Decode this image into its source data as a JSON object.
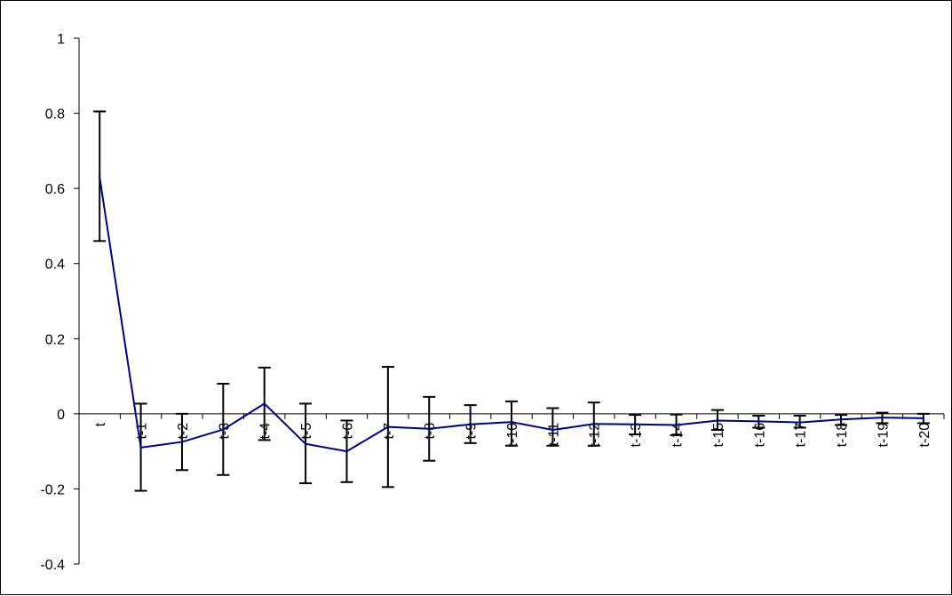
{
  "chart_data": {
    "type": "line",
    "title": "",
    "xlabel": "",
    "ylabel": "",
    "categories": [
      "t",
      "t-1",
      "t-2",
      "t-3",
      "t-4",
      "t-5",
      "t-6",
      "t-7",
      "t-8",
      "t-9",
      "t-10",
      "t-11",
      "t-12",
      "t-13",
      "t-14",
      "t-15",
      "t-16",
      "t-17",
      "t-18",
      "t-19",
      "t-20"
    ],
    "series": [
      {
        "values": [
          0.63,
          -0.09,
          -0.075,
          -0.042,
          0.027,
          -0.08,
          -0.1,
          -0.035,
          -0.04,
          -0.028,
          -0.022,
          -0.043,
          -0.027,
          -0.028,
          -0.03,
          -0.018,
          -0.02,
          -0.023,
          -0.015,
          -0.01,
          -0.012
        ],
        "upper": [
          0.805,
          0.027,
          0.0,
          0.08,
          0.123,
          0.027,
          -0.018,
          0.125,
          0.045,
          0.023,
          0.033,
          0.015,
          0.03,
          -0.003,
          -0.002,
          0.01,
          -0.005,
          -0.005,
          -0.003,
          0.003,
          0.0
        ],
        "lower": [
          0.46,
          -0.205,
          -0.15,
          -0.163,
          -0.07,
          -0.185,
          -0.182,
          -0.195,
          -0.125,
          -0.078,
          -0.085,
          -0.085,
          -0.085,
          -0.055,
          -0.057,
          -0.043,
          -0.037,
          -0.037,
          -0.03,
          -0.025,
          -0.025
        ]
      }
    ],
    "ylim": [
      -0.4,
      1
    ],
    "y_ticks": [
      "-0.4",
      "-0.2",
      "0",
      "0.2",
      "0.4",
      "0.6",
      "0.8",
      "1"
    ],
    "grid": false,
    "legend": "none",
    "colors": {
      "line": "#000080",
      "error_bars": "#000000",
      "axis": "#000000"
    }
  }
}
